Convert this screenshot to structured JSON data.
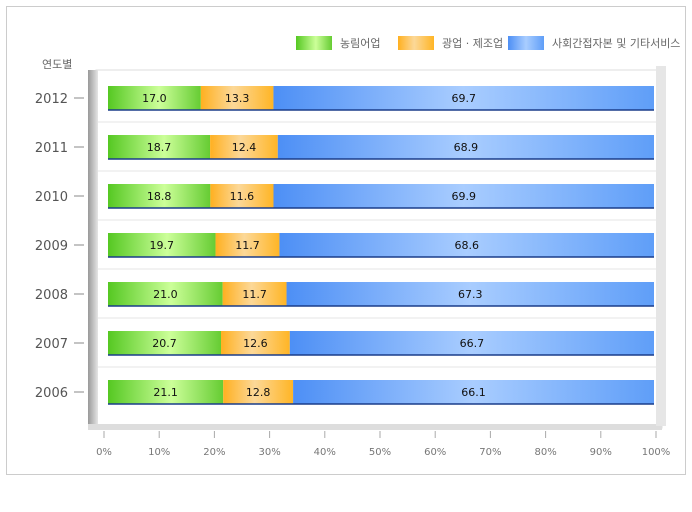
{
  "chart_data": {
    "type": "bar",
    "orientation": "horizontal",
    "stacked": true,
    "ylabel": "연도별",
    "categories": [
      "2012",
      "2011",
      "2010",
      "2009",
      "2008",
      "2007",
      "2006"
    ],
    "series": [
      {
        "name": "농림어업",
        "color": "#66cc33",
        "values": [
          17.0,
          18.7,
          18.8,
          19.7,
          21.0,
          20.7,
          21.1
        ]
      },
      {
        "name": "광업 · 제조업",
        "color": "#ffb833",
        "values": [
          13.3,
          12.4,
          11.6,
          11.7,
          11.7,
          12.6,
          12.8
        ]
      },
      {
        "name": "사회간접자본 및 기타서비스",
        "color": "#5599ff",
        "values": [
          69.7,
          68.9,
          69.9,
          68.6,
          67.3,
          66.7,
          66.1
        ]
      }
    ],
    "xticks": [
      "0%",
      "10%",
      "20%",
      "30%",
      "40%",
      "50%",
      "60%",
      "70%",
      "80%",
      "90%",
      "100%"
    ],
    "xlim": [
      0,
      100
    ],
    "legend": "top-right",
    "grid": false
  }
}
